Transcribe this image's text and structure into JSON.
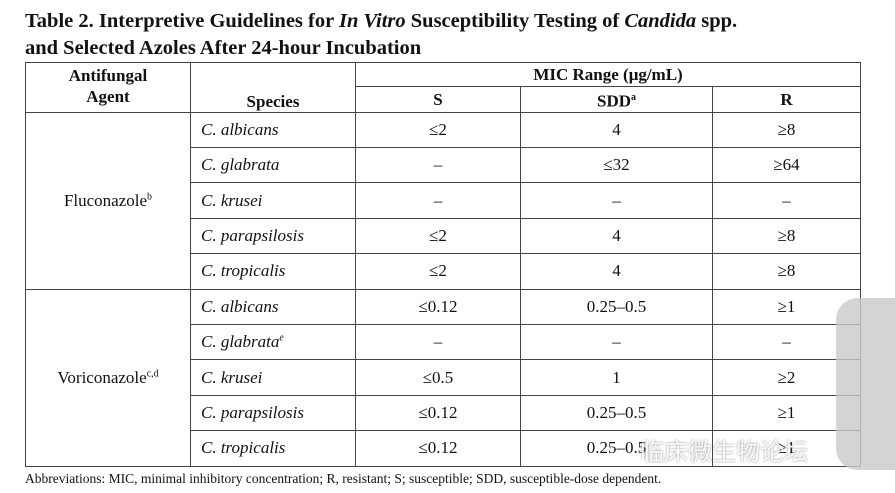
{
  "title_parts": [
    "Table 2. Interpretive Guidelines for ",
    "In Vitro",
    " Susceptibility Testing of ",
    "Candida",
    " spp.",
    "and Selected Azoles After 24-hour Incubation"
  ],
  "header": {
    "agent": "Antifungal Agent",
    "species": "Species",
    "mic": "MIC Range (μg/mL)",
    "s": "S",
    "sdd": "SDD",
    "sdd_sup": "a",
    "r": "R"
  },
  "groups": [
    {
      "agent": "Fluconazole",
      "agent_sup": "b",
      "rows": [
        {
          "species": "C. albicans",
          "s": "≤2",
          "sdd": "4",
          "r": "≥8"
        },
        {
          "species": "C. glabrata",
          "s": "–",
          "sdd": "≤32",
          "r": "≥64"
        },
        {
          "species": "C. krusei",
          "s": "–",
          "sdd": "–",
          "r": "–"
        },
        {
          "species": "C. parapsilosis",
          "s": "≤2",
          "sdd": "4",
          "r": "≥8"
        },
        {
          "species": "C. tropicalis",
          "s": "≤2",
          "sdd": "4",
          "r": "≥8"
        }
      ]
    },
    {
      "agent": "Voriconazole",
      "agent_sup": "c,d",
      "rows": [
        {
          "species": "C. albicans",
          "s": "≤0.12",
          "sdd": "0.25–0.5",
          "r": "≥1"
        },
        {
          "species": "C. glabrata",
          "species_sup": "e",
          "s": "–",
          "sdd": "–",
          "r": "–"
        },
        {
          "species": "C. krusei",
          "s": "≤0.5",
          "sdd": "1",
          "r": "≥2"
        },
        {
          "species": "C. parapsilosis",
          "s": "≤0.12",
          "sdd": "0.25–0.5",
          "r": "≥1"
        },
        {
          "species": "C. tropicalis",
          "s": "≤0.12",
          "sdd": "0.25–0.5",
          "r": "≥1"
        }
      ]
    }
  ],
  "footnote": "Abbreviations: MIC, minimal inhibitory concentration; R, resistant; S; susceptible; SDD, susceptible-dose dependent.",
  "watermark": "临床微生物论坛"
}
